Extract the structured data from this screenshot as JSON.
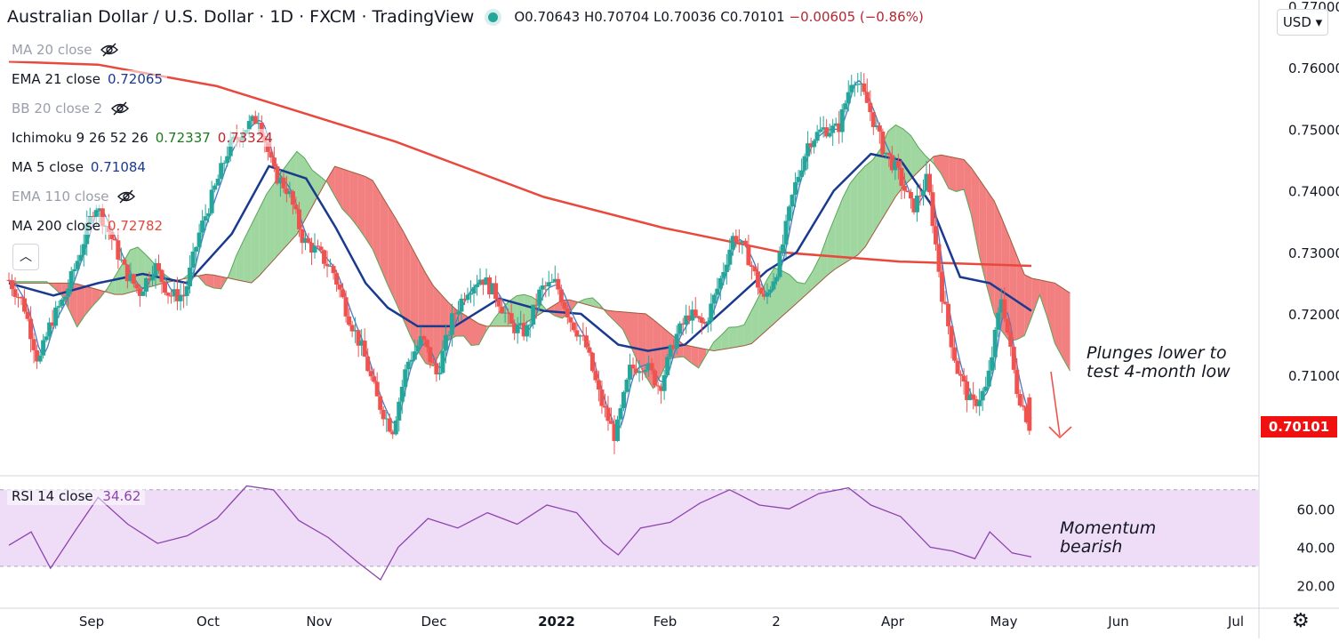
{
  "header": {
    "symbol": "Australian Dollar / U.S. Dollar · 1D · FXCM · TradingView",
    "o": "O0.70643",
    "h": "H0.70704",
    "l": "L0.70036",
    "c": "C0.70101",
    "change": "−0.00605 (−0.86%)"
  },
  "legend": [
    {
      "name": "MA 20 close",
      "value": "",
      "hidden": true,
      "color": ""
    },
    {
      "name": "EMA 21 close",
      "value": "0.72065",
      "hidden": false,
      "color": "#1a3a8f"
    },
    {
      "name": "BB 20 close 2",
      "value": "",
      "hidden": true,
      "color": ""
    },
    {
      "name": "Ichimoku 9 26 52 26",
      "value": "0.72337",
      "value2": "0.73324",
      "hidden": false,
      "color": "#1b7a1b",
      "color2": "#c0262e"
    },
    {
      "name": "MA 5 close",
      "value": "0.71084",
      "hidden": false,
      "color": "#1a3a8f"
    },
    {
      "name": "EMA 110 close",
      "value": "",
      "hidden": true,
      "color": ""
    },
    {
      "name": "MA 200 close",
      "value": "0.72782",
      "hidden": false,
      "color": "#e04a3f"
    }
  ],
  "currency_button": "USD ▾",
  "last_price": "0.70101",
  "annotations": {
    "main": [
      "Plunges lower to",
      "test 4-month low"
    ],
    "rsi": [
      "Momentum",
      "bearish"
    ]
  },
  "rsi_legend": {
    "name": "RSI 14 close",
    "value": "34.62"
  },
  "colors": {
    "bull": "#26a69a",
    "bear": "#ef5350",
    "ma200": "#e9483c",
    "ema21": "#1a3a8f",
    "ma5": "#4a78c8",
    "kumo_bull": "#8fcf8f",
    "kumo_bear": "#f06a6a",
    "rsi": "#8e44ad",
    "rsi_band": "#efdcf7"
  },
  "chart_data": {
    "type": "candlestick",
    "title": "Australian Dollar / U.S. Dollar · 1D · FXCM",
    "y_ticks": [
      "0.77000",
      "0.76000",
      "0.75000",
      "0.74000",
      "0.73000",
      "0.72000",
      "0.71000"
    ],
    "x_ticks": [
      "Sep",
      "Oct",
      "Nov",
      "Dec",
      "2022",
      "Feb",
      "2",
      "Apr",
      "May",
      "Jun",
      "Jul"
    ],
    "ylim": [
      0.694,
      0.771
    ],
    "last_ohlc": {
      "open": 0.70643,
      "high": 0.70704,
      "low": 0.70036,
      "close": 0.70101
    },
    "close_path": [
      [
        0,
        0.7255
      ],
      [
        10,
        0.7215
      ],
      [
        20,
        0.712
      ],
      [
        28,
        0.7185
      ],
      [
        38,
        0.723
      ],
      [
        48,
        0.73
      ],
      [
        58,
        0.738
      ],
      [
        68,
        0.733
      ],
      [
        78,
        0.727
      ],
      [
        88,
        0.7235
      ],
      [
        98,
        0.728
      ],
      [
        108,
        0.723
      ],
      [
        118,
        0.723
      ],
      [
        128,
        0.733
      ],
      [
        138,
        0.74
      ],
      [
        148,
        0.747
      ],
      [
        158,
        0.75
      ],
      [
        168,
        0.752
      ],
      [
        178,
        0.743
      ],
      [
        188,
        0.74
      ],
      [
        198,
        0.732
      ],
      [
        208,
        0.73
      ],
      [
        218,
        0.727
      ],
      [
        228,
        0.72
      ],
      [
        238,
        0.714
      ],
      [
        248,
        0.706
      ],
      [
        258,
        0.701
      ],
      [
        268,
        0.712
      ],
      [
        278,
        0.716
      ],
      [
        288,
        0.71
      ],
      [
        298,
        0.719
      ],
      [
        308,
        0.724
      ],
      [
        318,
        0.726
      ],
      [
        328,
        0.723
      ],
      [
        338,
        0.718
      ],
      [
        348,
        0.717
      ],
      [
        358,
        0.724
      ],
      [
        368,
        0.725
      ],
      [
        378,
        0.719
      ],
      [
        388,
        0.715
      ],
      [
        398,
        0.706
      ],
      [
        408,
        0.7
      ],
      [
        418,
        0.711
      ],
      [
        428,
        0.712
      ],
      [
        438,
        0.708
      ],
      [
        448,
        0.716
      ],
      [
        458,
        0.72
      ],
      [
        468,
        0.718
      ],
      [
        478,
        0.725
      ],
      [
        488,
        0.733
      ],
      [
        498,
        0.729
      ],
      [
        508,
        0.722
      ],
      [
        518,
        0.728
      ],
      [
        528,
        0.74
      ],
      [
        538,
        0.748
      ],
      [
        548,
        0.75
      ],
      [
        558,
        0.75
      ],
      [
        568,
        0.759
      ],
      [
        578,
        0.754
      ],
      [
        588,
        0.747
      ],
      [
        598,
        0.743
      ],
      [
        608,
        0.737
      ],
      [
        618,
        0.742
      ],
      [
        628,
        0.723
      ],
      [
        638,
        0.711
      ],
      [
        648,
        0.705
      ],
      [
        658,
        0.708
      ],
      [
        668,
        0.723
      ],
      [
        678,
        0.708
      ],
      [
        688,
        0.701
      ]
    ],
    "ma200_path": [
      [
        0,
        0.761
      ],
      [
        60,
        0.7605
      ],
      [
        140,
        0.757
      ],
      [
        260,
        0.748
      ],
      [
        360,
        0.739
      ],
      [
        440,
        0.734
      ],
      [
        520,
        0.73
      ],
      [
        600,
        0.7285
      ],
      [
        688,
        0.7278
      ]
    ],
    "ema21_path": [
      [
        0,
        0.725
      ],
      [
        30,
        0.723
      ],
      [
        60,
        0.725
      ],
      [
        90,
        0.7265
      ],
      [
        120,
        0.725
      ],
      [
        150,
        0.733
      ],
      [
        175,
        0.744
      ],
      [
        200,
        0.742
      ],
      [
        220,
        0.734
      ],
      [
        240,
        0.725
      ],
      [
        255,
        0.721
      ],
      [
        275,
        0.718
      ],
      [
        300,
        0.718
      ],
      [
        330,
        0.7225
      ],
      [
        360,
        0.7205
      ],
      [
        385,
        0.72
      ],
      [
        410,
        0.715
      ],
      [
        430,
        0.714
      ],
      [
        455,
        0.715
      ],
      [
        485,
        0.7215
      ],
      [
        510,
        0.727
      ],
      [
        530,
        0.73
      ],
      [
        555,
        0.74
      ],
      [
        580,
        0.746
      ],
      [
        600,
        0.745
      ],
      [
        620,
        0.738
      ],
      [
        640,
        0.726
      ],
      [
        660,
        0.725
      ],
      [
        688,
        0.7205
      ]
    ],
    "rsi_ticks": [
      "60.00",
      "40.00",
      "20.00"
    ],
    "rsi_range": [
      10,
      75
    ],
    "rsi_bands": [
      70,
      30
    ],
    "rsi_path": [
      [
        0,
        41
      ],
      [
        15,
        48
      ],
      [
        28,
        29
      ],
      [
        45,
        49
      ],
      [
        60,
        66
      ],
      [
        80,
        52
      ],
      [
        100,
        42
      ],
      [
        120,
        46
      ],
      [
        140,
        55
      ],
      [
        160,
        72
      ],
      [
        178,
        70
      ],
      [
        195,
        54
      ],
      [
        215,
        45
      ],
      [
        235,
        32
      ],
      [
        250,
        23
      ],
      [
        262,
        40
      ],
      [
        282,
        55
      ],
      [
        302,
        50
      ],
      [
        322,
        58
      ],
      [
        342,
        52
      ],
      [
        362,
        62
      ],
      [
        382,
        58
      ],
      [
        400,
        42
      ],
      [
        410,
        36
      ],
      [
        425,
        50
      ],
      [
        445,
        53
      ],
      [
        465,
        63
      ],
      [
        485,
        70
      ],
      [
        505,
        62
      ],
      [
        525,
        60
      ],
      [
        545,
        68
      ],
      [
        565,
        71
      ],
      [
        580,
        62
      ],
      [
        600,
        56
      ],
      [
        620,
        40
      ],
      [
        635,
        38
      ],
      [
        650,
        34
      ],
      [
        660,
        48
      ],
      [
        675,
        37
      ],
      [
        688,
        35
      ]
    ],
    "last_rsi": 34.62
  }
}
